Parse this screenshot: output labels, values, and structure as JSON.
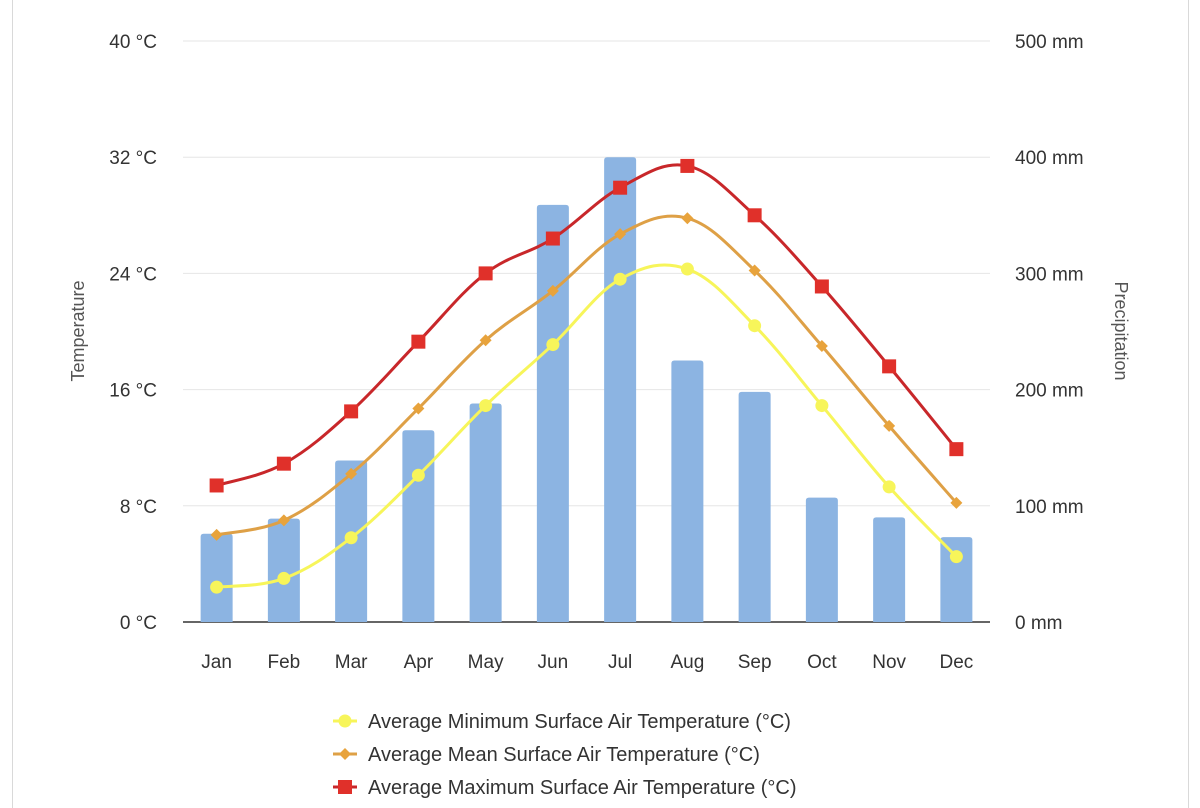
{
  "chart_data": {
    "type": "bar",
    "title": "",
    "categories": [
      "Jan",
      "Feb",
      "Mar",
      "Apr",
      "May",
      "Jun",
      "Jul",
      "Aug",
      "Sep",
      "Oct",
      "Nov",
      "Dec"
    ],
    "y_left": {
      "label": "Temperature",
      "unit": "°C",
      "range": [
        0,
        40
      ],
      "ticks": [
        0,
        8,
        16,
        24,
        32,
        40
      ],
      "tick_labels": [
        "0 °C",
        "8 °C",
        "16 °C",
        "24 °C",
        "32 °C",
        "40 °C"
      ]
    },
    "y_right": {
      "label": "Precipitation",
      "unit": "mm",
      "range": [
        0,
        500
      ],
      "ticks": [
        0,
        100,
        200,
        300,
        400,
        500
      ],
      "tick_labels": [
        "0 mm",
        "100 mm",
        "200 mm",
        "300 mm",
        "400 mm",
        "500 mm"
      ]
    },
    "grid": true,
    "legend_position": "bottom",
    "series": [
      {
        "name": "Precipitation",
        "type": "bar",
        "axis": "right",
        "color": "#8cb4e2",
        "values": [
          76,
          89,
          139,
          165,
          188,
          359,
          400,
          225,
          198,
          107,
          90,
          73
        ]
      },
      {
        "name": "Average Minimum Surface Air Temperature (°C)",
        "type": "line",
        "axis": "left",
        "marker": "circle",
        "color": "#f7f55a",
        "values": [
          2.4,
          3.0,
          5.8,
          10.1,
          14.9,
          19.1,
          23.6,
          24.3,
          20.4,
          14.9,
          9.3,
          4.5
        ]
      },
      {
        "name": "Average Mean Surface Air Temperature (°C)",
        "type": "line",
        "axis": "left",
        "marker": "diamond",
        "color": "#e8a33c",
        "values": [
          6.0,
          7.0,
          10.2,
          14.7,
          19.4,
          22.8,
          26.7,
          27.8,
          24.2,
          19.0,
          13.5,
          8.2
        ]
      },
      {
        "name": "Average Maximum Surface Air Temperature (°C)",
        "type": "line",
        "axis": "left",
        "marker": "square",
        "color": "#e0302a",
        "values": [
          9.4,
          10.9,
          14.5,
          19.3,
          24.0,
          26.4,
          29.9,
          31.4,
          28.0,
          23.1,
          17.6,
          11.9
        ]
      }
    ],
    "legend": [
      "Average Minimum Surface Air Temperature (°C)",
      "Average Mean Surface Air Temperature (°C)",
      "Average Maximum Surface Air Temperature (°C)"
    ]
  }
}
